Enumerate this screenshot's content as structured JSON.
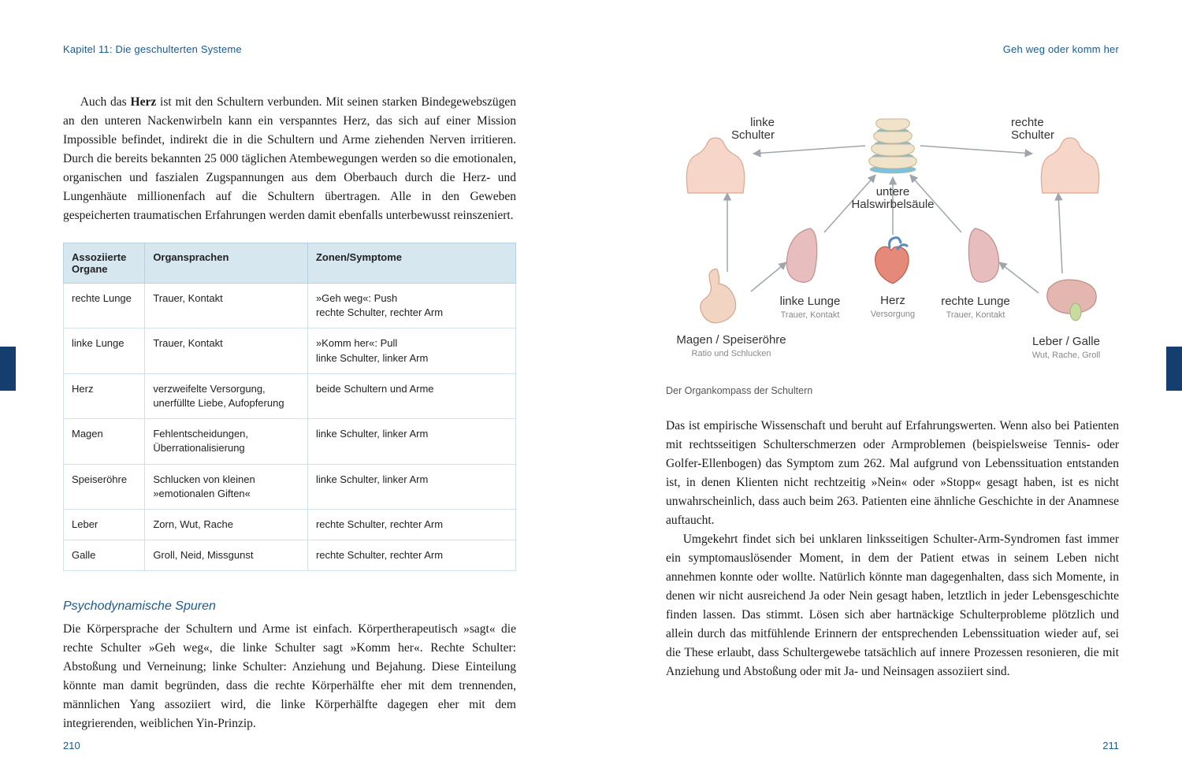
{
  "headerLeft": "Kapitel 11: Die geschulterten Systeme",
  "headerRight": "Geh weg oder komm her",
  "pageNumLeft": "210",
  "pageNumRight": "211",
  "para1_a": "Auch das ",
  "para1_bold": "Herz",
  "para1_b": " ist mit den Schultern verbunden. Mit seinen starken Bindegewebszügen an den unteren Nackenwirbeln kann ein verspanntes Herz, das sich auf einer Mission Impossible befindet, indirekt die in die Schultern und Arme ziehenden Nerven irritieren. Durch die bereits bekannten 25 000 täglichen Atembewegungen werden so die emotionalen, organischen und faszialen Zugspannungen aus dem Oberbauch durch die Herz- und Lungenhäute millionenfach auf die Schultern übertragen. Alle in den Geweben gespeicherten traumatischen Erfahrungen werden damit ebenfalls unterbewusst reinszeniert.",
  "table": {
    "headers": [
      "Assoziierte Organe",
      "Organsprachen",
      "Zonen/Symptome"
    ],
    "rows": [
      [
        "rechte Lunge",
        "Trauer, Kontakt",
        "»Geh weg«: Push\nrechte Schulter, rechter Arm"
      ],
      [
        "linke Lunge",
        "Trauer, Kontakt",
        "»Komm her«: Pull\nlinke Schulter, linker Arm"
      ],
      [
        "Herz",
        "verzweifelte Versorgung, unerfüllte Liebe, Aufopferung",
        "beide Schultern und Arme"
      ],
      [
        "Magen",
        "Fehlentscheidungen, Überrationalisierung",
        "linke Schulter, linker Arm"
      ],
      [
        "Speiseröhre",
        "Schlucken von kleinen »emotionalen Giften«",
        "linke Schulter, linker Arm"
      ],
      [
        "Leber",
        "Zorn, Wut, Rache",
        "rechte Schulter, rechter Arm"
      ],
      [
        "Galle",
        "Groll, Neid, Missgunst",
        "rechte Schulter, rechter Arm"
      ]
    ]
  },
  "sectionTitle": "Psychodynamische Spuren",
  "para2": "Die Körpersprache der Schultern und Arme ist einfach. Körpertherapeutisch »sagt« die rechte Schulter »Geh weg«, die linke Schulter sagt »Komm her«. Rechte Schulter: Abstoßung und Verneinung; linke Schulter: Anziehung und Bejahung. Diese Einteilung könnte man damit begründen, dass die rechte Körperhälfte eher mit dem trennenden, männlichen Yang assoziiert wird, die linke Körperhälfte dagegen eher mit dem integrierenden, weiblichen Yin-Prinzip.",
  "diagram": {
    "caption": "Der Organkompass der Schultern",
    "colors": {
      "torso_fill": "#f6d6c8",
      "torso_stroke": "#d9a891",
      "lung_fill": "#e7bdbd",
      "lung_stroke": "#c08f8f",
      "stomach_fill": "#f2d4c2",
      "stomach_stroke": "#d2a88f",
      "liver_fill": "#e3b7b0",
      "liver_stroke": "#c08f85",
      "gall_fill": "#c8dca0",
      "gall_stroke": "#9fb377",
      "heart_fill": "#e58a7a",
      "heart_stroke": "#c25a4a",
      "heart_vessel": "#5a8bbd",
      "spine_bone": "#f1e3c9",
      "spine_disc": "#7cc1dd",
      "spine_stroke": "#c5b58f",
      "arrow": "#9fa6ab"
    },
    "labels": {
      "linkeSchulter": "linke\nSchulter",
      "rechteSchulter": "rechte\nSchulter",
      "hws": "untere\nHalswirbelsäule",
      "linkeLunge": "linke Lunge",
      "linkeLungeSub": "Trauer, Kontakt",
      "herz": "Herz",
      "herzSub": "Versorgung",
      "rechteLunge": "rechte Lunge",
      "rechteLungeSub": "Trauer, Kontakt",
      "magen": "Magen / Speiseröhre",
      "magenSub": "Ratio und Schlucken",
      "leber": "Leber / Galle",
      "leberSub": "Wut, Rache, Groll"
    }
  },
  "para3": "Das ist empirische Wissenschaft und beruht auf Erfahrungswerten. Wenn also bei Patienten mit rechtsseitigen Schulterschmerzen oder Armproblemen (beispielsweise Tennis- oder Golfer-Ellenbogen) das Symptom zum 262. Mal aufgrund von Lebenssituation entstanden ist, in denen Klienten nicht rechtzeitig »Nein« oder »Stopp« gesagt haben, ist es nicht unwahrscheinlich, dass auch beim 263. Patienten eine ähnliche Geschichte in der Anamnese auftaucht.",
  "para4": "Umgekehrt findet sich bei unklaren linksseitigen Schulter-Arm-Syndromen fast immer ein symptomauslösender Moment, in dem der Patient etwas in seinem Leben nicht annehmen konnte oder wollte. Natürlich könnte man dagegenhalten, dass sich Momente, in denen wir nicht ausreichend Ja oder Nein gesagt haben, letztlich in jeder Lebensgeschichte finden lassen. Das stimmt. Lösen sich aber hartnäckige Schulterprobleme plötzlich und allein durch das mitfühlende Erinnern der entsprechenden Lebenssituation wieder auf, sei die These erlaubt, dass Schultergewebe tatsächlich auf innere Prozessen resonieren, die mit Anziehung und Abstoßung oder mit Ja- und Neinsagen assoziiert sind."
}
